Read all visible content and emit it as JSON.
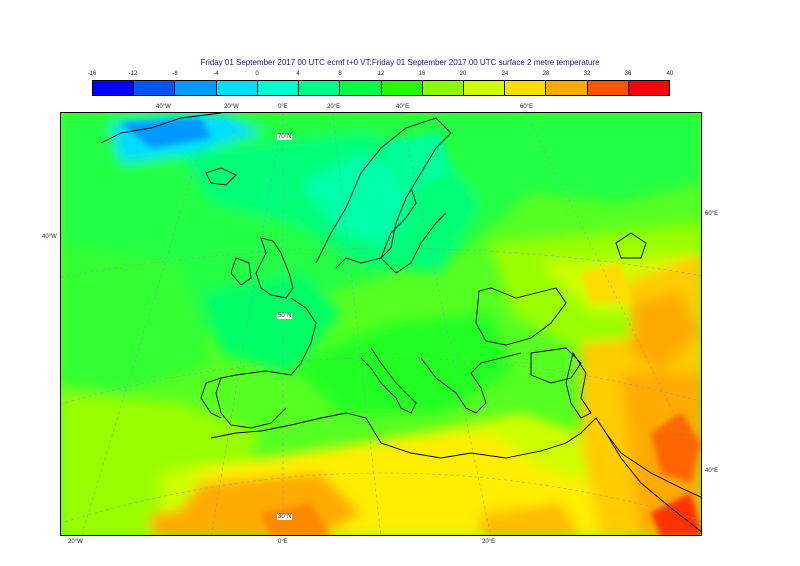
{
  "title": "Friday 01 September 2017 00 UTC ecmf t+0 VT:Friday 01 September 2017 00 UTC surface  2 metre temperature",
  "legend": {
    "ticks": [
      "-16",
      "-12",
      "-8",
      "-4",
      "0",
      "4",
      "8",
      "12",
      "16",
      "20",
      "24",
      "28",
      "32",
      "36",
      "40"
    ],
    "colors": [
      "#0000ff",
      "#0055ff",
      "#0099ff",
      "#00ddff",
      "#00ffcc",
      "#00ff88",
      "#00ff44",
      "#22ff00",
      "#88ff00",
      "#ccff00",
      "#ffdd00",
      "#ffaa00",
      "#ff5500",
      "#ff0000"
    ]
  },
  "map_labels": {
    "top_lon": [
      "40°W",
      "20°W",
      "0°E",
      "20°E",
      "40°E",
      "60°E"
    ],
    "bottom_lon": [
      "20°W",
      "0°E",
      "20°E"
    ],
    "left_lat": [
      "40°W"
    ],
    "right_lat": [
      "60°E",
      "40°E"
    ],
    "inner_lat": [
      "70°N",
      "50°N",
      "30°N"
    ]
  }
}
